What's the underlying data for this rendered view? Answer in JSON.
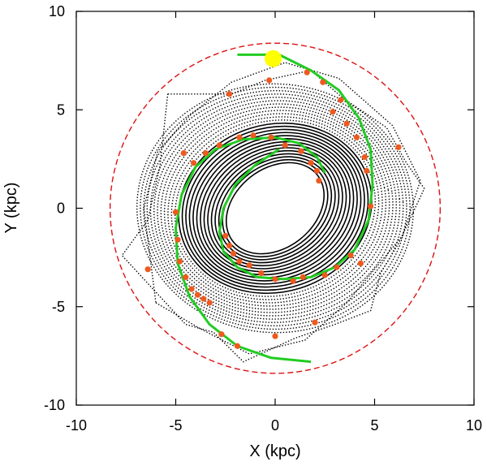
{
  "chart_data": {
    "type": "scatter",
    "xlabel": "X (kpc)",
    "ylabel": "Y (kpc)",
    "xlim": [
      -10,
      10
    ],
    "ylim": [
      -10,
      10
    ],
    "xticks": [
      -10,
      -5,
      0,
      5,
      10
    ],
    "yticks": [
      -10,
      -5,
      0,
      5,
      10
    ],
    "xtick_labels": [
      "-10",
      "-5",
      "0",
      "5",
      "10"
    ],
    "ytick_labels": [
      "-10",
      "-5",
      "0",
      "5",
      "10"
    ],
    "grid": false,
    "legend": "none",
    "colors": {
      "orbits": "#000000",
      "spiral": "#22cc22",
      "markers": "#ee5a1e",
      "circle": "#dd1111",
      "sun": "#ffff00"
    },
    "outer_circle": {
      "radius": 8.3,
      "style": "dashed"
    },
    "sun_marker": {
      "x": -0.1,
      "y": 7.6
    },
    "spiral_arms": [
      [
        [
          -1.9,
          7.8
        ],
        [
          0.2,
          7.8
        ],
        [
          1.8,
          7.0
        ],
        [
          3.2,
          6.0
        ],
        [
          4.2,
          4.6
        ],
        [
          4.8,
          3.0
        ],
        [
          4.9,
          1.2
        ],
        [
          4.7,
          -0.6
        ],
        [
          4.0,
          -2.1
        ],
        [
          3.0,
          -3.0
        ],
        [
          1.8,
          -3.5
        ],
        [
          0.4,
          -3.6
        ],
        [
          -0.9,
          -3.5
        ],
        [
          -1.9,
          -3.0
        ],
        [
          -2.6,
          -2.2
        ],
        [
          -2.8,
          -1.2
        ],
        [
          -2.6,
          0.0
        ],
        [
          -2.0,
          1.2
        ],
        [
          -1.0,
          2.2
        ],
        [
          0.2,
          3.0
        ]
      ],
      [
        [
          1.8,
          -7.8
        ],
        [
          -0.2,
          -7.6
        ],
        [
          -1.9,
          -7.0
        ],
        [
          -3.3,
          -5.9
        ],
        [
          -4.3,
          -4.5
        ],
        [
          -4.9,
          -2.8
        ],
        [
          -5.0,
          -1.0
        ],
        [
          -4.7,
          0.7
        ],
        [
          -4.0,
          2.1
        ],
        [
          -3.0,
          3.0
        ],
        [
          -1.6,
          3.5
        ],
        [
          0.0,
          3.6
        ],
        [
          1.2,
          3.3
        ],
        [
          2.1,
          2.6
        ],
        [
          2.5,
          1.8
        ]
      ]
    ],
    "markers": [
      [
        -0.3,
        6.5
      ],
      [
        -2.3,
        5.8
      ],
      [
        1.6,
        6.9
      ],
      [
        2.4,
        6.4
      ],
      [
        3.3,
        5.5
      ],
      [
        2.9,
        4.9
      ],
      [
        3.6,
        4.3
      ],
      [
        4.1,
        3.6
      ],
      [
        4.5,
        2.6
      ],
      [
        4.6,
        1.9
      ],
      [
        4.8,
        0.1
      ],
      [
        6.2,
        3.1
      ],
      [
        -4.6,
        2.8
      ],
      [
        -4.1,
        2.3
      ],
      [
        -3.5,
        2.8
      ],
      [
        -2.8,
        3.2
      ],
      [
        -1.8,
        3.6
      ],
      [
        -1.1,
        3.7
      ],
      [
        -0.2,
        3.6
      ],
      [
        0.5,
        3.2
      ],
      [
        1.3,
        2.9
      ],
      [
        1.8,
        2.3
      ],
      [
        2.1,
        1.9
      ],
      [
        2.2,
        1.4
      ],
      [
        -5.0,
        -0.2
      ],
      [
        -4.9,
        -1.6
      ],
      [
        -4.8,
        -2.7
      ],
      [
        -4.5,
        -3.5
      ],
      [
        -4.2,
        -4.1
      ],
      [
        -3.9,
        -4.4
      ],
      [
        -3.6,
        -4.6
      ],
      [
        -3.3,
        -4.8
      ],
      [
        -6.4,
        -3.1
      ],
      [
        -2.7,
        -6.4
      ],
      [
        -1.9,
        -7.0
      ],
      [
        -2.5,
        -1.4
      ],
      [
        -2.3,
        -1.9
      ],
      [
        -2.1,
        -2.3
      ],
      [
        -1.8,
        -2.7
      ],
      [
        -1.3,
        -2.9
      ],
      [
        -0.7,
        -3.3
      ],
      [
        0.0,
        -3.6
      ],
      [
        0.9,
        -3.7
      ],
      [
        1.4,
        -3.5
      ],
      [
        2.5,
        -3.4
      ],
      [
        3.1,
        -3.0
      ],
      [
        3.8,
        -2.4
      ],
      [
        4.3,
        -2.8
      ],
      [
        2.0,
        -5.8
      ],
      [
        0.0,
        -6.5
      ]
    ]
  }
}
